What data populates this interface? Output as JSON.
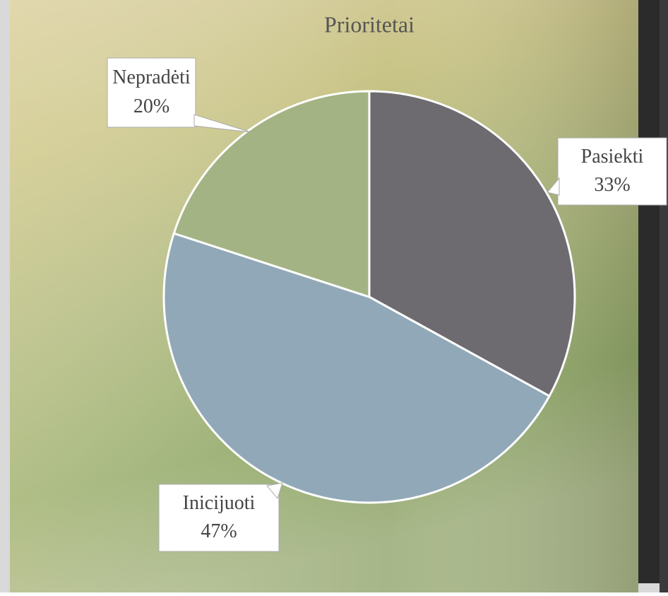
{
  "chart_data": {
    "type": "pie",
    "title": "Prioritetai",
    "categories": [
      "Pasiekti",
      "Inicijuoti",
      "Nepradėti"
    ],
    "values": [
      33,
      47,
      20
    ],
    "value_labels": [
      "33%",
      "47%",
      "20%"
    ],
    "colors": [
      "#6d6b70",
      "#91a8b8",
      "#a3b383"
    ]
  }
}
